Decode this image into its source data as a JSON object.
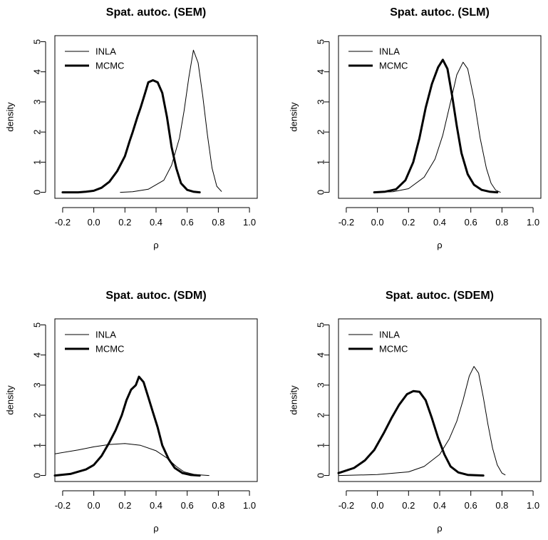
{
  "chart_data": [
    {
      "type": "line",
      "title": "Spat. autoc. (SEM)",
      "xlabel": "ρ",
      "ylabel": "density",
      "xlim": [
        -0.25,
        1.05
      ],
      "ylim": [
        -0.2,
        5.2
      ],
      "xticks": [
        -0.2,
        0.0,
        0.2,
        0.4,
        0.6,
        0.8,
        1.0
      ],
      "xtick_labels": [
        "-0.2",
        "0.0",
        "0.2",
        "0.4",
        "0.6",
        "0.8",
        "1.0"
      ],
      "yticks": [
        0,
        1,
        2,
        3,
        4,
        5
      ],
      "ytick_labels": [
        "0",
        "1",
        "2",
        "3",
        "4",
        "5"
      ],
      "legend": {
        "position": "top-left",
        "entries": [
          "INLA",
          "MCMC"
        ]
      },
      "series": [
        {
          "name": "INLA",
          "style": "thin",
          "points": [
            [
              0.17,
              0.0
            ],
            [
              0.25,
              0.02
            ],
            [
              0.35,
              0.1
            ],
            [
              0.45,
              0.4
            ],
            [
              0.5,
              0.9
            ],
            [
              0.55,
              1.8
            ],
            [
              0.58,
              2.7
            ],
            [
              0.61,
              3.8
            ],
            [
              0.64,
              4.72
            ],
            [
              0.67,
              4.3
            ],
            [
              0.7,
              3.2
            ],
            [
              0.73,
              1.9
            ],
            [
              0.76,
              0.8
            ],
            [
              0.79,
              0.2
            ],
            [
              0.82,
              0.03
            ]
          ]
        },
        {
          "name": "MCMC",
          "style": "thick",
          "points": [
            [
              -0.2,
              0.0
            ],
            [
              -0.1,
              0.0
            ],
            [
              -0.05,
              0.02
            ],
            [
              0.0,
              0.05
            ],
            [
              0.05,
              0.15
            ],
            [
              0.1,
              0.35
            ],
            [
              0.15,
              0.7
            ],
            [
              0.2,
              1.2
            ],
            [
              0.23,
              1.7
            ],
            [
              0.25,
              2.0
            ],
            [
              0.28,
              2.5
            ],
            [
              0.3,
              2.8
            ],
            [
              0.33,
              3.3
            ],
            [
              0.35,
              3.65
            ],
            [
              0.38,
              3.72
            ],
            [
              0.41,
              3.65
            ],
            [
              0.44,
              3.3
            ],
            [
              0.47,
              2.5
            ],
            [
              0.5,
              1.5
            ],
            [
              0.53,
              0.8
            ],
            [
              0.56,
              0.3
            ],
            [
              0.6,
              0.08
            ],
            [
              0.64,
              0.02
            ],
            [
              0.68,
              0.0
            ]
          ]
        }
      ]
    },
    {
      "type": "line",
      "title": "Spat. autoc. (SLM)",
      "xlabel": "ρ",
      "ylabel": "density",
      "xlim": [
        -0.25,
        1.05
      ],
      "ylim": [
        -0.2,
        5.2
      ],
      "xticks": [
        -0.2,
        0.0,
        0.2,
        0.4,
        0.6,
        0.8,
        1.0
      ],
      "xtick_labels": [
        "-0.2",
        "0.0",
        "0.2",
        "0.4",
        "0.6",
        "0.8",
        "1.0"
      ],
      "yticks": [
        0,
        1,
        2,
        3,
        4,
        5
      ],
      "ytick_labels": [
        "0",
        "1",
        "2",
        "3",
        "4",
        "5"
      ],
      "legend": {
        "position": "top-left",
        "entries": [
          "INLA",
          "MCMC"
        ]
      },
      "series": [
        {
          "name": "INLA",
          "style": "thin",
          "points": [
            [
              0.0,
              0.0
            ],
            [
              0.1,
              0.02
            ],
            [
              0.2,
              0.12
            ],
            [
              0.3,
              0.5
            ],
            [
              0.37,
              1.1
            ],
            [
              0.42,
              1.9
            ],
            [
              0.47,
              3.0
            ],
            [
              0.51,
              3.9
            ],
            [
              0.55,
              4.32
            ],
            [
              0.58,
              4.1
            ],
            [
              0.62,
              3.1
            ],
            [
              0.66,
              1.8
            ],
            [
              0.7,
              0.8
            ],
            [
              0.73,
              0.3
            ],
            [
              0.76,
              0.07
            ],
            [
              0.79,
              0.0
            ]
          ]
        },
        {
          "name": "MCMC",
          "style": "thick",
          "points": [
            [
              -0.02,
              0.0
            ],
            [
              0.05,
              0.02
            ],
            [
              0.12,
              0.1
            ],
            [
              0.18,
              0.4
            ],
            [
              0.23,
              1.0
            ],
            [
              0.27,
              1.8
            ],
            [
              0.31,
              2.8
            ],
            [
              0.35,
              3.6
            ],
            [
              0.39,
              4.15
            ],
            [
              0.42,
              4.4
            ],
            [
              0.45,
              4.1
            ],
            [
              0.48,
              3.2
            ],
            [
              0.51,
              2.2
            ],
            [
              0.54,
              1.3
            ],
            [
              0.58,
              0.6
            ],
            [
              0.62,
              0.25
            ],
            [
              0.67,
              0.08
            ],
            [
              0.72,
              0.02
            ],
            [
              0.77,
              0.0
            ]
          ]
        }
      ]
    },
    {
      "type": "line",
      "title": "Spat. autoc. (SDM)",
      "xlabel": "ρ",
      "ylabel": "density",
      "xlim": [
        -0.25,
        1.05
      ],
      "ylim": [
        -0.2,
        5.2
      ],
      "xticks": [
        -0.2,
        0.0,
        0.2,
        0.4,
        0.6,
        0.8,
        1.0
      ],
      "xtick_labels": [
        "-0.2",
        "0.0",
        "0.2",
        "0.4",
        "0.6",
        "0.8",
        "1.0"
      ],
      "yticks": [
        0,
        1,
        2,
        3,
        4,
        5
      ],
      "ytick_labels": [
        "0",
        "1",
        "2",
        "3",
        "4",
        "5"
      ],
      "legend": {
        "position": "top-left",
        "entries": [
          "INLA",
          "MCMC"
        ]
      },
      "series": [
        {
          "name": "INLA",
          "style": "thin",
          "points": [
            [
              -0.25,
              0.72
            ],
            [
              -0.1,
              0.85
            ],
            [
              0.0,
              0.95
            ],
            [
              0.1,
              1.03
            ],
            [
              0.2,
              1.06
            ],
            [
              0.3,
              1.0
            ],
            [
              0.4,
              0.82
            ],
            [
              0.47,
              0.58
            ],
            [
              0.53,
              0.3
            ],
            [
              0.58,
              0.12
            ],
            [
              0.65,
              0.03
            ],
            [
              0.74,
              0.0
            ]
          ]
        },
        {
          "name": "MCMC",
          "style": "thick",
          "points": [
            [
              -0.25,
              0.0
            ],
            [
              -0.15,
              0.05
            ],
            [
              -0.05,
              0.2
            ],
            [
              0.0,
              0.35
            ],
            [
              0.05,
              0.65
            ],
            [
              0.1,
              1.1
            ],
            [
              0.14,
              1.5
            ],
            [
              0.18,
              2.0
            ],
            [
              0.21,
              2.5
            ],
            [
              0.24,
              2.85
            ],
            [
              0.27,
              3.0
            ],
            [
              0.29,
              3.28
            ],
            [
              0.32,
              3.1
            ],
            [
              0.35,
              2.6
            ],
            [
              0.38,
              2.1
            ],
            [
              0.41,
              1.6
            ],
            [
              0.44,
              1.0
            ],
            [
              0.48,
              0.55
            ],
            [
              0.52,
              0.25
            ],
            [
              0.57,
              0.08
            ],
            [
              0.62,
              0.02
            ],
            [
              0.68,
              0.0
            ]
          ]
        }
      ]
    },
    {
      "type": "line",
      "title": "Spat. autoc. (SDEM)",
      "xlabel": "ρ",
      "ylabel": "density",
      "xlim": [
        -0.25,
        1.05
      ],
      "ylim": [
        -0.2,
        5.2
      ],
      "xticks": [
        -0.2,
        0.0,
        0.2,
        0.4,
        0.6,
        0.8,
        1.0
      ],
      "xtick_labels": [
        "-0.2",
        "0.0",
        "0.2",
        "0.4",
        "0.6",
        "0.8",
        "1.0"
      ],
      "yticks": [
        0,
        1,
        2,
        3,
        4,
        5
      ],
      "ytick_labels": [
        "0",
        "1",
        "2",
        "3",
        "4",
        "5"
      ],
      "legend": {
        "position": "top-left",
        "entries": [
          "INLA",
          "MCMC"
        ]
      },
      "series": [
        {
          "name": "INLA",
          "style": "thin",
          "points": [
            [
              -0.25,
              0.0
            ],
            [
              0.0,
              0.03
            ],
            [
              0.2,
              0.12
            ],
            [
              0.3,
              0.3
            ],
            [
              0.4,
              0.7
            ],
            [
              0.46,
              1.2
            ],
            [
              0.51,
              1.8
            ],
            [
              0.55,
              2.5
            ],
            [
              0.59,
              3.3
            ],
            [
              0.62,
              3.62
            ],
            [
              0.65,
              3.4
            ],
            [
              0.68,
              2.6
            ],
            [
              0.71,
              1.7
            ],
            [
              0.74,
              0.9
            ],
            [
              0.77,
              0.35
            ],
            [
              0.8,
              0.08
            ],
            [
              0.82,
              0.02
            ]
          ]
        },
        {
          "name": "MCMC",
          "style": "thick",
          "points": [
            [
              -0.25,
              0.08
            ],
            [
              -0.15,
              0.25
            ],
            [
              -0.08,
              0.5
            ],
            [
              -0.02,
              0.85
            ],
            [
              0.04,
              1.4
            ],
            [
              0.09,
              1.9
            ],
            [
              0.14,
              2.35
            ],
            [
              0.19,
              2.7
            ],
            [
              0.23,
              2.8
            ],
            [
              0.27,
              2.78
            ],
            [
              0.31,
              2.5
            ],
            [
              0.35,
              1.9
            ],
            [
              0.39,
              1.25
            ],
            [
              0.43,
              0.7
            ],
            [
              0.47,
              0.3
            ],
            [
              0.52,
              0.1
            ],
            [
              0.58,
              0.02
            ],
            [
              0.68,
              0.0
            ]
          ]
        }
      ]
    }
  ]
}
